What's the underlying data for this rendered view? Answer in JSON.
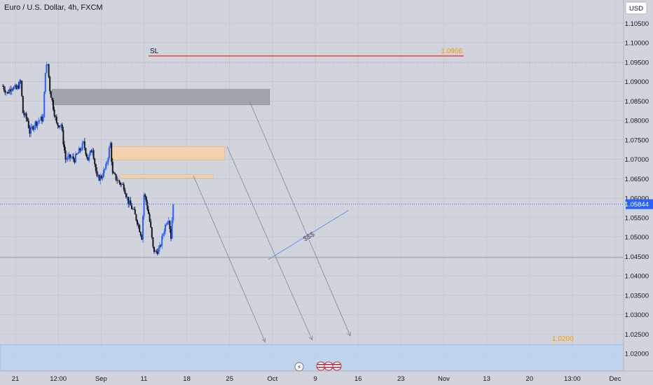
{
  "header": {
    "title": "Euro / U.S. Dollar, 4h, FXCM",
    "currency_button": "USD"
  },
  "colors": {
    "background": "#d1d4dc",
    "up_candle": "#2962ff",
    "down_candle": "#131722",
    "sl_line": "#e53935",
    "orange_text": "#ff9800",
    "gray_zone": "#9a9ca3",
    "orange_zone": "#f5d2a8",
    "target_zone": "#bcd3ef",
    "price_badge": "#2962ff"
  },
  "chart_data": {
    "type": "candlestick",
    "title": "Euro / U.S. Dollar, 4h, FXCM",
    "y_ticks": [
      "1.10500",
      "1.10000",
      "1.09500",
      "1.09000",
      "1.08500",
      "1.08000",
      "1.07500",
      "1.07000",
      "1.06500",
      "1.06000",
      "1.05500",
      "1.05000",
      "1.04500",
      "1.04000",
      "1.03500",
      "1.03000",
      "1.02500",
      "1.02000"
    ],
    "ylim": [
      1.0155,
      1.111
    ],
    "x_ticks": [
      "21",
      "12:00",
      "Sep",
      "11",
      "18",
      "25",
      "Oct",
      "9",
      "16",
      "23",
      "Nov",
      "13",
      "20",
      "13:00",
      "Dec"
    ],
    "last_price_label": "1.05844",
    "last_price": 1.05844,
    "support_level": 1.0447,
    "resistance_level": 1.0948,
    "annotations": {
      "sl_label": "SL",
      "sl_value_label": "1.0966",
      "sl_level": 1.0966,
      "target_label": "1.0200",
      "liquidity_label": "$$$"
    },
    "zones": [
      {
        "name": "gray-zone",
        "from_bar": 22,
        "to_bar": 119,
        "top": 1.088,
        "bottom": 1.084
      },
      {
        "name": "orange-zone-upper",
        "from_bar": 47,
        "to_bar": 99,
        "top": 1.0733,
        "bottom": 1.0698
      },
      {
        "name": "orange-zone-lower",
        "from_bar": 52,
        "to_bar": 94,
        "top": 1.066,
        "bottom": 1.0652
      }
    ],
    "target_zone": {
      "top": 1.0223,
      "bottom": 1.0155
    },
    "series": {
      "points": [
        [
          0,
          1.0888
        ],
        [
          2,
          1.087
        ],
        [
          4,
          1.0888
        ],
        [
          6,
          1.088
        ],
        [
          8,
          1.09
        ],
        [
          9,
          1.082
        ],
        [
          11,
          1.08
        ],
        [
          12,
          1.077
        ],
        [
          14,
          1.079
        ],
        [
          16,
          1.08
        ],
        [
          18,
          1.0805
        ],
        [
          19,
          1.093
        ],
        [
          20,
          1.0945
        ],
        [
          21,
          1.088
        ],
        [
          22,
          1.085
        ],
        [
          23,
          1.082
        ],
        [
          24,
          1.079
        ],
        [
          26,
          1.079
        ],
        [
          28,
          1.07
        ],
        [
          30,
          1.0705
        ],
        [
          32,
          1.07
        ],
        [
          34,
          1.072
        ],
        [
          36,
          1.074
        ],
        [
          38,
          1.07
        ],
        [
          40,
          1.073
        ],
        [
          42,
          1.065
        ],
        [
          44,
          1.0655
        ],
        [
          46,
          1.068
        ],
        [
          48,
          1.074
        ],
        [
          49,
          1.066
        ],
        [
          50,
          1.0655
        ],
        [
          52,
          1.064
        ],
        [
          54,
          1.063
        ],
        [
          56,
          1.059
        ],
        [
          58,
          1.057
        ],
        [
          60,
          1.054
        ],
        [
          62,
          1.05
        ],
        [
          63,
          1.061
        ],
        [
          64,
          1.059
        ],
        [
          65,
          1.056
        ],
        [
          66,
          1.052
        ],
        [
          67,
          1.047
        ],
        [
          68,
          1.046
        ],
        [
          70,
          1.047
        ],
        [
          72,
          1.052
        ],
        [
          73,
          1.054
        ],
        [
          74,
          1.055
        ],
        [
          75,
          1.05
        ],
        [
          76,
          1.059
        ]
      ],
      "up_color": "#2962ff",
      "down_color": "#131722"
    },
    "projections": [
      {
        "from": [
          85,
          1.0658
        ],
        "to": [
          117,
          1.023
        ]
      },
      {
        "from": [
          100,
          1.0733
        ],
        "to": [
          138,
          1.0235
        ]
      },
      {
        "from": [
          110,
          1.085
        ],
        "to": [
          155,
          1.0245
        ]
      }
    ],
    "grid": true,
    "legend": "none"
  }
}
